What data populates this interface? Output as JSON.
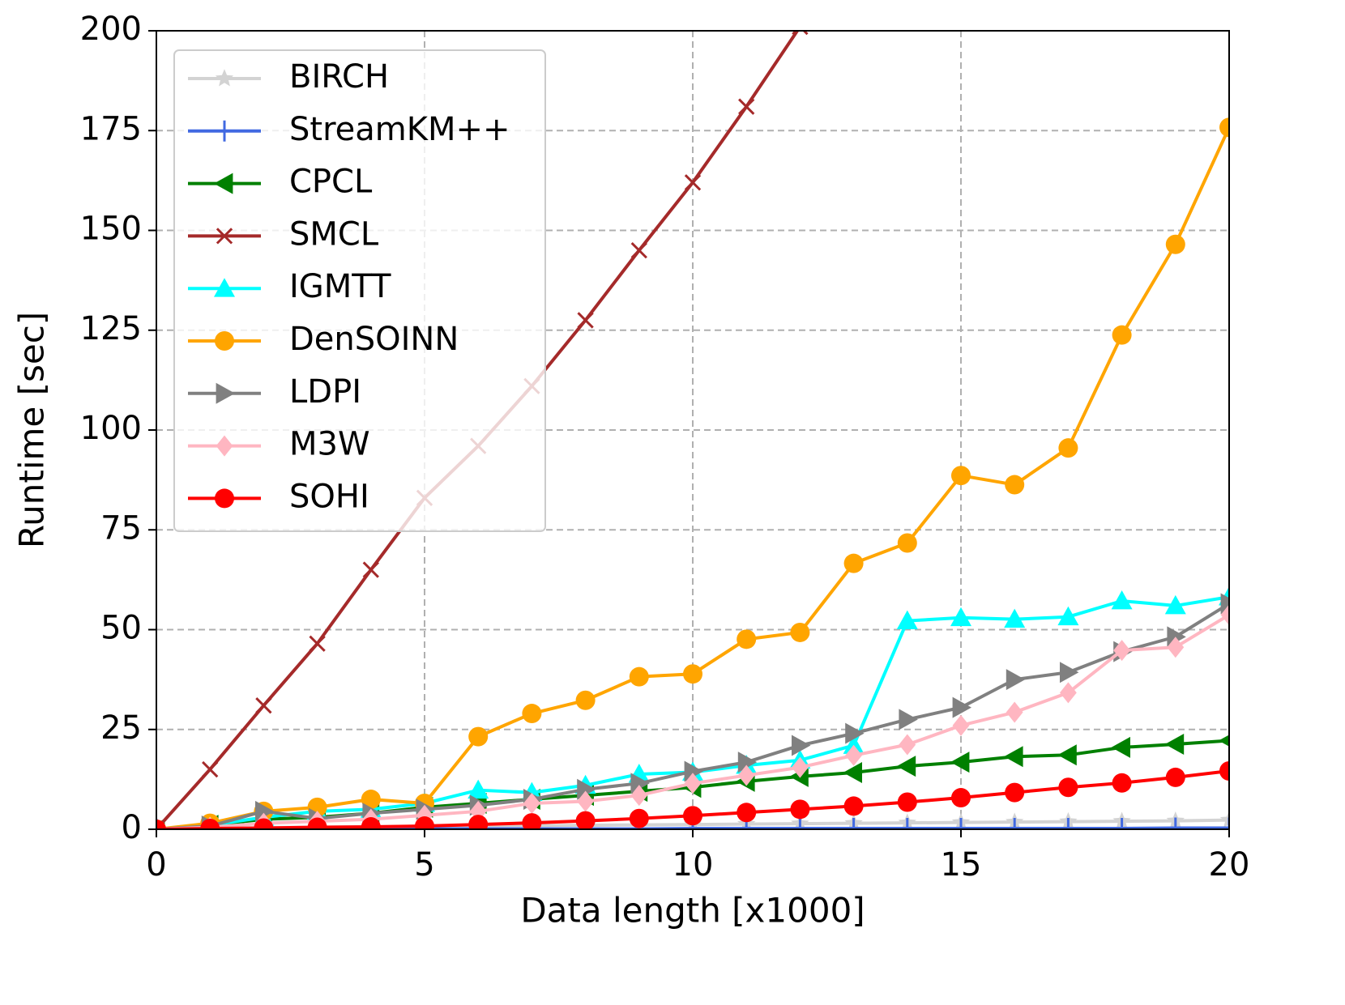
{
  "chart_data": {
    "type": "line",
    "xlabel": "Data length [x1000]",
    "ylabel": "Runtime [sec]",
    "x": [
      0,
      1,
      2,
      3,
      4,
      5,
      6,
      7,
      8,
      9,
      10,
      11,
      12,
      13,
      14,
      15,
      16,
      17,
      18,
      19,
      20
    ],
    "xlim": [
      0,
      20
    ],
    "ylim": [
      0,
      200
    ],
    "xticks": [
      0,
      5,
      10,
      15,
      20
    ],
    "yticks": [
      0,
      25,
      50,
      75,
      100,
      125,
      150,
      175,
      200
    ],
    "grid": true,
    "legend": "upper left",
    "series": [
      {
        "name": "BIRCH",
        "color": "#d3d3d3",
        "marker": "star",
        "values": [
          0,
          0.2,
          0.4,
          0.5,
          0.6,
          0.7,
          0.8,
          0.9,
          1.0,
          1.1,
          1.2,
          1.3,
          1.4,
          1.5,
          1.6,
          1.7,
          1.8,
          1.9,
          2.0,
          2.1,
          2.3
        ]
      },
      {
        "name": "StreamKM++",
        "color": "#4169e1",
        "marker": "plus",
        "values": [
          0,
          0.1,
          0.1,
          0.1,
          0.1,
          0.1,
          0.1,
          0.1,
          0.1,
          0.1,
          0.2,
          0.2,
          0.2,
          0.2,
          0.2,
          0.2,
          0.2,
          0.2,
          0.2,
          0.3,
          0.3
        ]
      },
      {
        "name": "CPCL",
        "color": "#008000",
        "marker": "tri-left",
        "values": [
          0,
          1,
          2.5,
          3,
          4,
          5.5,
          6.5,
          7.5,
          8.5,
          9.5,
          10.5,
          12,
          13.2,
          14.2,
          15.8,
          16.8,
          18.2,
          18.6,
          20.5,
          21.3,
          22.2
        ]
      },
      {
        "name": "SMCL",
        "color": "#a52a2a",
        "marker": "x",
        "values": [
          0,
          15,
          31,
          46.5,
          65,
          83,
          96,
          111,
          127.5,
          145,
          162,
          181,
          201,
          null,
          null,
          null,
          null,
          null,
          null,
          null,
          null
        ]
      },
      {
        "name": "IGMTT",
        "color": "#00ffff",
        "marker": "tri-up",
        "values": [
          0,
          1,
          3,
          4.5,
          5,
          6.5,
          9.8,
          9.2,
          11,
          13.8,
          14.3,
          16,
          17.3,
          21,
          52.2,
          53,
          52.6,
          53.2,
          57.2,
          56,
          58.2
        ]
      },
      {
        "name": "DenSOINN",
        "color": "#ffa500",
        "marker": "circle",
        "values": [
          0,
          1.5,
          4.5,
          5.5,
          7.5,
          6.5,
          23.2,
          29,
          32.3,
          38.2,
          38.9,
          47.6,
          49.3,
          66.6,
          71.7,
          88.6,
          86.3,
          95.5,
          123.8,
          146.5,
          175.8
        ]
      },
      {
        "name": "LDPI",
        "color": "#808080",
        "marker": "tri-right",
        "values": [
          0,
          0.8,
          4.5,
          2.7,
          4,
          5,
          6,
          7.5,
          10,
          11.5,
          14.5,
          16.8,
          21,
          24,
          27.5,
          30.5,
          37.5,
          39.3,
          44.5,
          48.2,
          56.5
        ]
      },
      {
        "name": "M3W",
        "color": "#ffb6c1",
        "marker": "diamond",
        "values": [
          0,
          0.5,
          1.5,
          2,
          2.5,
          3.5,
          4.5,
          6.5,
          7,
          8.5,
          11.5,
          13.5,
          15.5,
          18.5,
          21.2,
          26,
          29.3,
          34.2,
          44.8,
          45.6,
          53.7
        ]
      },
      {
        "name": "SOHI",
        "color": "#ff0000",
        "marker": "circle",
        "values": [
          0,
          0.2,
          0.3,
          0.5,
          0.6,
          0.8,
          1.2,
          1.6,
          2.1,
          2.7,
          3.4,
          4.2,
          5,
          5.8,
          6.8,
          7.9,
          9.2,
          10.5,
          11.6,
          13,
          14.6
        ]
      }
    ]
  }
}
